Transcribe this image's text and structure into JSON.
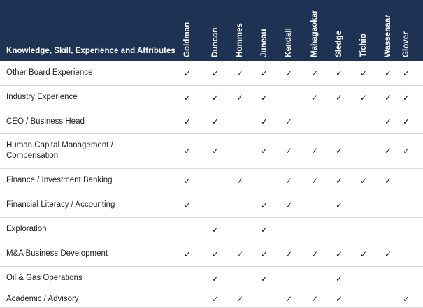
{
  "header_title": "Knowledge, Skill, Experience and Attributes",
  "directors": [
    "Goldman",
    "Duncan",
    "Hommes",
    "Juneau",
    "Kendall",
    "Mahagaokar",
    "Sledge",
    "Tichio",
    "Wassenaar",
    "Glover"
  ],
  "check_glyph": "✓",
  "rows": [
    {
      "label": "Other Board Experience",
      "checks": [
        1,
        1,
        1,
        1,
        1,
        1,
        1,
        1,
        1,
        1
      ]
    },
    {
      "label": "Industry Experience",
      "checks": [
        1,
        1,
        1,
        1,
        0,
        1,
        1,
        1,
        1,
        1
      ]
    },
    {
      "label": "CEO / Business Head",
      "checks": [
        1,
        1,
        0,
        1,
        1,
        0,
        0,
        0,
        1,
        1
      ]
    },
    {
      "label": "Human Capital Management / Compensation",
      "checks": [
        1,
        1,
        0,
        1,
        1,
        1,
        1,
        0,
        1,
        1
      ]
    },
    {
      "label": "Finance / Investment Banking",
      "checks": [
        1,
        0,
        1,
        0,
        1,
        1,
        1,
        1,
        1,
        0
      ]
    },
    {
      "label": "Financial Literacy / Accounting",
      "checks": [
        1,
        0,
        0,
        1,
        1,
        0,
        1,
        0,
        0,
        0
      ]
    },
    {
      "label": "Exploration",
      "checks": [
        0,
        1,
        0,
        1,
        0,
        0,
        0,
        0,
        0,
        0
      ]
    },
    {
      "label": "M&A Business Development",
      "checks": [
        1,
        1,
        1,
        1,
        1,
        1,
        1,
        1,
        1,
        0
      ]
    },
    {
      "label": "Oil & Gas Operations",
      "checks": [
        0,
        1,
        0,
        1,
        0,
        0,
        1,
        0,
        0,
        0
      ]
    },
    {
      "label": "Academic / Advisory",
      "checks": [
        0,
        1,
        1,
        0,
        1,
        1,
        1,
        0,
        0,
        1
      ]
    }
  ]
}
